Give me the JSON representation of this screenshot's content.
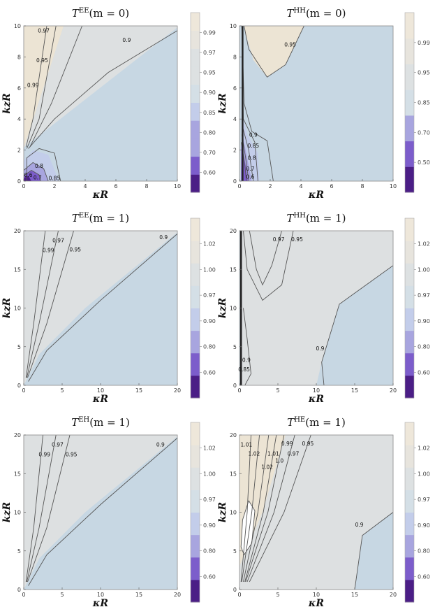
{
  "chart_data": [
    {
      "type": "contour",
      "title": {
        "base": "T",
        "sup": "EE",
        "args": "(m = 0)"
      },
      "xlabel": "κR",
      "ylabel": "kzR",
      "xlim": [
        0,
        10
      ],
      "ylim": [
        0,
        10
      ],
      "xticks": [
        0,
        2,
        4,
        6,
        8,
        10
      ],
      "yticks": [
        0,
        2,
        4,
        6,
        8,
        10
      ],
      "colorbar_ticks": [
        "0.60",
        "0.70",
        "0.80",
        "0.85",
        "0.90",
        "0.95",
        "0.97",
        "0.99"
      ],
      "contour_labels": [
        "0.97",
        "0.95",
        "0.99",
        "0.9",
        "0.8",
        "0.6",
        "0.7",
        "0.85"
      ]
    },
    {
      "type": "contour",
      "title": {
        "base": "T",
        "sup": "HH",
        "args": "(m = 0)"
      },
      "xlabel": "κR",
      "ylabel": "kzR",
      "xlim": [
        0,
        10
      ],
      "ylim": [
        0,
        10
      ],
      "xticks": [
        0,
        2,
        4,
        6,
        8,
        10
      ],
      "yticks": [
        0,
        2,
        4,
        6,
        8,
        10
      ],
      "colorbar_ticks": [
        "0.50",
        "0.70",
        "0.85",
        "0.95",
        "0.99"
      ],
      "contour_labels": [
        "0.95",
        "0.9",
        "0.85",
        "0.8",
        "0.7",
        "0.6"
      ]
    },
    {
      "type": "contour",
      "title": {
        "base": "T",
        "sup": "EE",
        "args": "(m = 1)"
      },
      "xlabel": "κR",
      "ylabel": "kzR",
      "xlim": [
        0,
        20
      ],
      "ylim": [
        0,
        20
      ],
      "xticks": [
        0,
        5,
        10,
        15,
        20
      ],
      "yticks": [
        0,
        5,
        10,
        15,
        20
      ],
      "colorbar_ticks": [
        "0.60",
        "0.80",
        "0.90",
        "0.97",
        "1.00",
        "1.02"
      ],
      "contour_labels": [
        "0.99",
        "0.97",
        "0.95",
        "0.9"
      ]
    },
    {
      "type": "contour",
      "title": {
        "base": "T",
        "sup": "HH",
        "args": "(m = 1)"
      },
      "xlabel": "κR",
      "ylabel": "kzR",
      "xlim": [
        0,
        20
      ],
      "ylim": [
        0,
        20
      ],
      "xticks": [
        0,
        5,
        10,
        15,
        20
      ],
      "yticks": [
        0,
        5,
        10,
        15,
        20
      ],
      "colorbar_ticks": [
        "0.60",
        "0.80",
        "0.90",
        "0.97",
        "1.00",
        "1.02"
      ],
      "contour_labels": [
        "0.97",
        "0.95",
        "0.9",
        "0.9",
        "0.85"
      ]
    },
    {
      "type": "contour",
      "title": {
        "base": "T",
        "sup": "EH",
        "args": "(m = 1)"
      },
      "xlabel": "κR",
      "ylabel": "kzR",
      "xlim": [
        0,
        20
      ],
      "ylim": [
        0,
        20
      ],
      "xticks": [
        0,
        5,
        10,
        15,
        20
      ],
      "yticks": [
        0,
        5,
        10,
        15,
        20
      ],
      "colorbar_ticks": [
        "0.60",
        "0.80",
        "0.90",
        "0.97",
        "1.00",
        "1.02"
      ],
      "contour_labels": [
        "0.99",
        "0.97",
        "0.95",
        "0.9"
      ]
    },
    {
      "type": "contour",
      "title": {
        "base": "T",
        "sup": "HE",
        "args": "(m = 1)"
      },
      "xlabel": "κR",
      "ylabel": "kzR",
      "xlim": [
        0,
        20
      ],
      "ylim": [
        0,
        20
      ],
      "xticks": [
        0,
        5,
        10,
        15,
        20
      ],
      "yticks": [
        0,
        5,
        10,
        15,
        20
      ],
      "colorbar_ticks": [
        "0.60",
        "0.80",
        "0.90",
        "0.97",
        "1.00",
        "1.02"
      ],
      "contour_labels": [
        "1.01",
        "1.02",
        "1.02",
        "1.01",
        "1.0",
        "0.99",
        "0.97",
        "0.95",
        "0.9"
      ]
    }
  ],
  "colors": {
    "plot_bg": "#c7d7e3",
    "high": "#ece4d4",
    "line": "#555555",
    "colorbar": [
      "#4b1e86",
      "#7c5dcb",
      "#a8a5df",
      "#c3cdea",
      "#d4dfe6",
      "#dde1e2",
      "#e7e4dd",
      "#eee7da"
    ]
  }
}
